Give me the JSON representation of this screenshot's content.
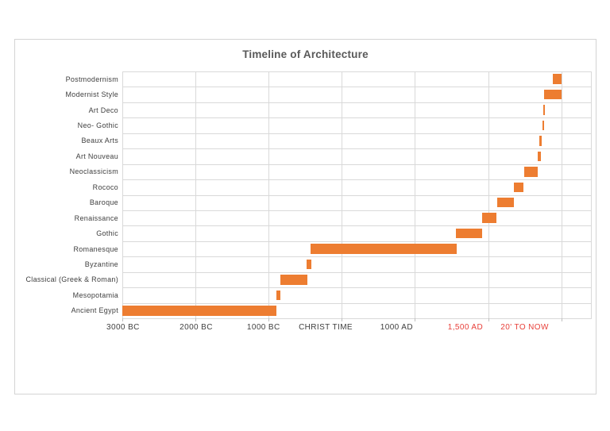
{
  "chart": {
    "bar_color": "#ED7D31",
    "gridline_color": "#D9D9D9",
    "title_color": "#595959",
    "axis_label_color": "#3F3F3F",
    "red_label_color": "#E8403A",
    "panel_border_color": "#D4D4D4"
  },
  "chart_data": {
    "type": "bar",
    "subtype": "horizontal-gantt-timeline",
    "title": "Timeline of Architecture",
    "legend": "none",
    "grid": "on",
    "x_axis": {
      "tick_labels": [
        "3000 BC",
        "2000 BC",
        "1000 BC",
        "CHRIST TIME",
        "1000 AD",
        "1,500 AD",
        "20' TO NOW"
      ],
      "tick_label_styles": [
        "dark",
        "dark",
        "dark",
        "dark",
        "dark",
        "red",
        "red"
      ],
      "gridlines_at_units": [
        0,
        1,
        2,
        3,
        4,
        5,
        6
      ],
      "label_center_units": [
        0.01,
        1.01,
        1.93,
        2.78,
        3.75,
        4.69,
        5.5
      ],
      "axis_units_range": [
        0,
        6.42
      ],
      "note_units": "1 unit = one gridline interval of the category-style time axis"
    },
    "categories": [
      "Postmodernism",
      "Modernist Style",
      "Art Deco",
      "Neo- Gothic",
      "Beaux Arts",
      "Art Nouveau",
      "Neoclassicism",
      "Rococo",
      "Baroque",
      "Renaissance",
      "Gothic",
      "Romanesque",
      "Byzantine",
      "Classical (Greek & Roman)",
      "Mesopotamia",
      "Ancient Egypt"
    ],
    "series": [
      {
        "label": "Postmodernism",
        "start": 5.89,
        "end": 6.0
      },
      {
        "label": "Modernist Style",
        "start": 5.77,
        "end": 6.0
      },
      {
        "label": "Art Deco",
        "start": 5.76,
        "end": 5.78
      },
      {
        "label": "Neo- Gothic",
        "start": 5.74,
        "end": 5.77
      },
      {
        "label": "Beaux Arts",
        "start": 5.7,
        "end": 5.73
      },
      {
        "label": "Art Nouveau",
        "start": 5.68,
        "end": 5.72
      },
      {
        "label": "Neoclassicism",
        "start": 5.49,
        "end": 5.68
      },
      {
        "label": "Rococo",
        "start": 5.35,
        "end": 5.48
      },
      {
        "label": "Baroque",
        "start": 5.13,
        "end": 5.35
      },
      {
        "label": "Renaissance",
        "start": 4.92,
        "end": 5.11
      },
      {
        "label": "Gothic",
        "start": 4.56,
        "end": 4.92
      },
      {
        "label": "Romanesque",
        "start": 2.57,
        "end": 4.57
      },
      {
        "label": "Byzantine",
        "start": 2.52,
        "end": 2.58
      },
      {
        "label": "Classical (Greek & Roman)",
        "start": 2.16,
        "end": 2.53
      },
      {
        "label": "Mesopotamia",
        "start": 2.11,
        "end": 2.16
      },
      {
        "label": "Ancient Egypt",
        "start": 0.0,
        "end": 2.11
      }
    ]
  }
}
